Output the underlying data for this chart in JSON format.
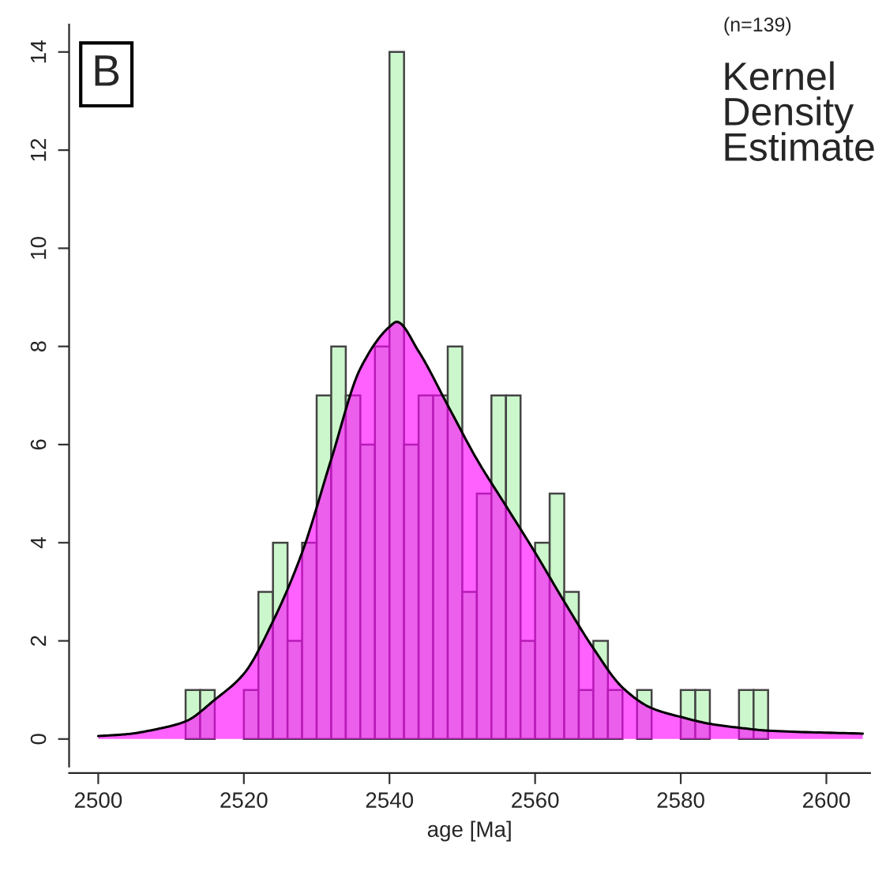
{
  "chart_data": {
    "type": "histogram",
    "xlabel": "age [Ma]",
    "annotations": [
      "B",
      "(n=139)",
      "Kernel\nDensity\nEstimate"
    ],
    "xlim": [
      2496,
      2606
    ],
    "xticks": [
      2500,
      2520,
      2540,
      2560,
      2580,
      2600
    ],
    "ylim": [
      -0.56,
      14.56
    ],
    "yticks": [
      0,
      2,
      4,
      6,
      8,
      10,
      12,
      14
    ],
    "grid": false,
    "legend": false,
    "series": [
      {
        "color": "#ccf7cc",
        "bins": [
          2512,
          2514,
          2516,
          2518,
          2520,
          2522,
          2524,
          2526,
          2528,
          2530,
          2532,
          2534,
          2536,
          2538,
          2540,
          2542,
          2544,
          2546,
          2548,
          2550,
          2552,
          2554,
          2556,
          2558,
          2560,
          2562,
          2564,
          2566,
          2568,
          2570,
          2572,
          2574,
          2576,
          2578,
          2580,
          2582,
          2584,
          2586,
          2588,
          2590,
          2592
        ],
        "values": [
          1,
          1,
          0,
          0,
          1,
          3,
          4,
          2,
          4,
          7,
          8,
          7,
          6,
          8,
          14,
          6,
          7,
          7,
          8,
          3,
          5,
          7,
          7,
          2,
          4,
          5,
          3,
          1,
          2,
          1,
          0,
          1,
          0,
          0,
          1,
          1,
          0,
          0,
          1,
          1
        ]
      },
      {
        "type": "area",
        "color": "#ff00ff",
        "x": [
          2500,
          2504,
          2508,
          2512,
          2516,
          2520,
          2524,
          2528,
          2532,
          2536,
          2540,
          2541,
          2544,
          2548,
          2552,
          2556,
          2560,
          2564,
          2568,
          2572,
          2576,
          2580,
          2584,
          2588,
          2592,
          2605
        ],
        "values": [
          0.06,
          0.1,
          0.2,
          0.36,
          0.8,
          1.33,
          2.4,
          3.8,
          5.7,
          7.55,
          8.4,
          8.5,
          7.9,
          6.8,
          5.7,
          4.75,
          3.8,
          2.8,
          1.85,
          1.05,
          0.63,
          0.45,
          0.31,
          0.23,
          0.17,
          0.11
        ]
      }
    ]
  }
}
